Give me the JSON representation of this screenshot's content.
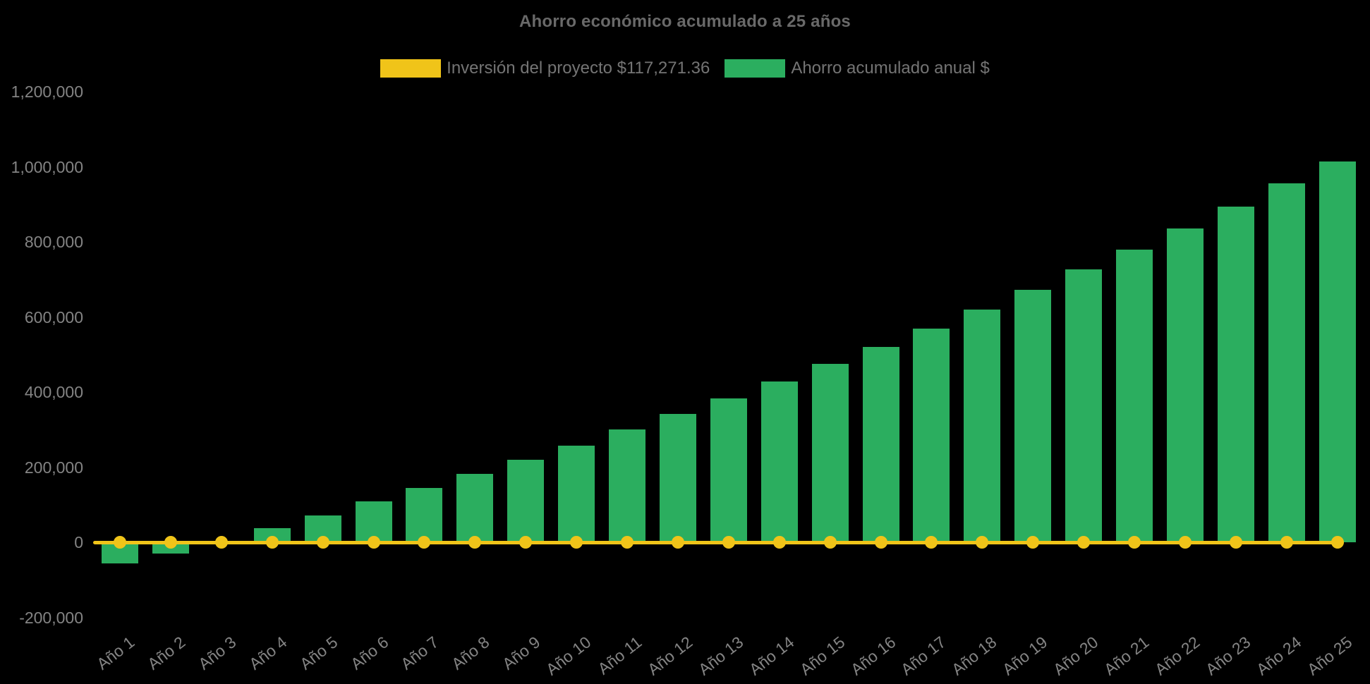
{
  "colors": {
    "background": "#000000",
    "bar_green": "#2bae5f",
    "line_yellow": "#f0c419",
    "title_text": "#696969",
    "legend_text": "#747474",
    "axis_text": "#848484"
  },
  "chart_data": {
    "type": "bar",
    "title": "Ahorro económico acumulado a 25 años",
    "categories": [
      "Año 1",
      "Año 2",
      "Año 3",
      "Año 4",
      "Año 5",
      "Año 6",
      "Año 7",
      "Año 8",
      "Año 9",
      "Año 10",
      "Año 11",
      "Año 12",
      "Año 13",
      "Año 14",
      "Año 15",
      "Año 16",
      "Año 17",
      "Año 18",
      "Año 19",
      "Año 20",
      "Año 21",
      "Año 22",
      "Año 23",
      "Año 24",
      "Año 25"
    ],
    "series": [
      {
        "name": "Inversión del proyecto $117,271.36",
        "type": "line",
        "color": "#f0c419",
        "marker": "circle",
        "y_value": 0,
        "amount_label": "$117,271.36"
      },
      {
        "name": "Ahorro acumulado anual $",
        "type": "bar",
        "color": "#2bae5f",
        "values": [
          -57000,
          -30000,
          -2000,
          38000,
          72000,
          108000,
          145000,
          182000,
          219000,
          258000,
          300000,
          341000,
          384000,
          428000,
          476000,
          520000,
          569000,
          620000,
          673000,
          726000,
          780000,
          836000,
          894000,
          955000,
          1014000
        ]
      }
    ],
    "ylim": [
      -200000,
      1200000
    ],
    "yticks": [
      {
        "label": "1,200,000",
        "value": 1200000
      },
      {
        "label": "1,000,000",
        "value": 1000000
      },
      {
        "label": "800,000",
        "value": 800000
      },
      {
        "label": "600,000",
        "value": 600000
      },
      {
        "label": "400,000",
        "value": 400000
      },
      {
        "label": "200,000",
        "value": 200000
      },
      {
        "label": "0",
        "value": 0
      },
      {
        "label": "-200,000",
        "value": -200000
      }
    ],
    "xlabel": "",
    "ylabel": "",
    "grid": false,
    "legend_position": "top-center"
  }
}
